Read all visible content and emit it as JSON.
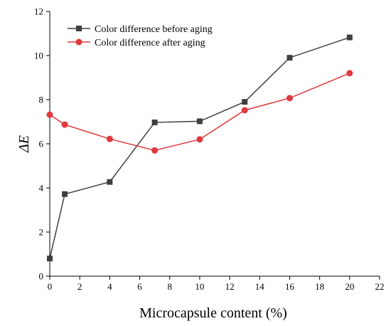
{
  "chart_data": {
    "type": "line",
    "xlabel": "Microcapsule content (%)",
    "ylabel": "ΔE",
    "xlim": [
      0,
      22
    ],
    "ylim": [
      0,
      12
    ],
    "x_ticks": [
      0,
      2,
      4,
      6,
      8,
      10,
      12,
      14,
      16,
      18,
      20,
      22
    ],
    "y_ticks": [
      0,
      2,
      4,
      6,
      8,
      10,
      12
    ],
    "grid": false,
    "legend_position": "top-left",
    "x": [
      0,
      1,
      4,
      7,
      10,
      13,
      16,
      20
    ],
    "series": [
      {
        "name": "Color difference before aging",
        "color": "#3f3f3f",
        "marker": "square",
        "values": [
          0.8,
          3.72,
          4.27,
          6.97,
          7.02,
          7.9,
          9.9,
          10.82
        ]
      },
      {
        "name": "Color difference after aging",
        "color": "#e0393e",
        "marker": "circle",
        "values": [
          7.32,
          6.87,
          6.22,
          5.7,
          6.2,
          7.52,
          8.07,
          9.2
        ]
      }
    ]
  }
}
